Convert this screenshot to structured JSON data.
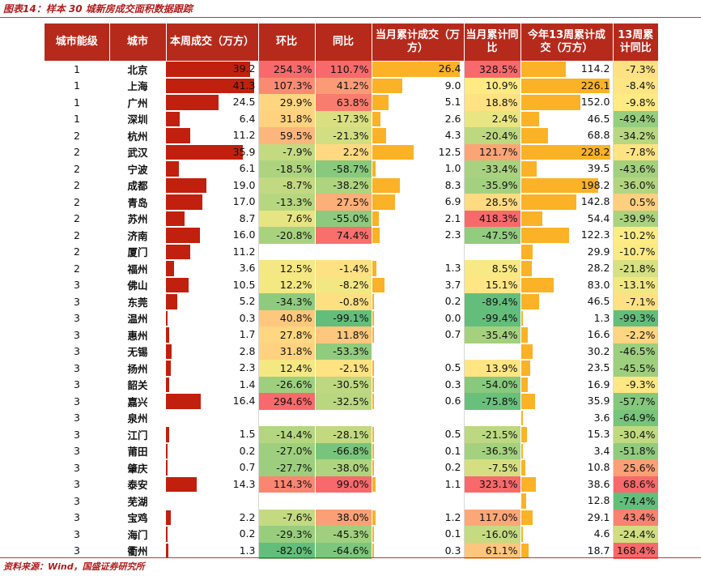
{
  "caption": "图表14：样本 30 城新房成交面积数据跟踪",
  "source": "资料来源：Wind，国盛证券研究所",
  "colors": {
    "header_bg": "#b62a1c",
    "weekly_bar": "#c1200e",
    "month_bar": "#fbb226",
    "text_red": "#b01c1c"
  },
  "headers": {
    "level": "城市能级",
    "city": "城市",
    "weekly": "本周成交（万方）",
    "mom": "环比",
    "yoy": "同比",
    "month_cum": "当月累计成交（万方）",
    "month_yoy": "当月累计同比",
    "y13": "今年13周累计成交（万方）",
    "y13_yoy": "13周累计同比"
  },
  "rows": [
    {
      "level": "1",
      "city": "北京",
      "weekly": "39.2",
      "mom": "254.3%",
      "yoy": "110.7%",
      "month_cum": "26.4",
      "month_yoy": "328.5%",
      "y13": "114.2",
      "y13_yoy": "-7.3%"
    },
    {
      "level": "1",
      "city": "上海",
      "weekly": "41.3",
      "mom": "107.3%",
      "yoy": "41.2%",
      "month_cum": "9.0",
      "month_yoy": "10.9%",
      "y13": "226.1",
      "y13_yoy": "-8.4%"
    },
    {
      "level": "1",
      "city": "广州",
      "weekly": "24.5",
      "mom": "29.9%",
      "yoy": "63.8%",
      "month_cum": "5.1",
      "month_yoy": "18.8%",
      "y13": "152.0",
      "y13_yoy": "-9.8%"
    },
    {
      "level": "1",
      "city": "深圳",
      "weekly": "6.4",
      "mom": "31.8%",
      "yoy": "-17.3%",
      "month_cum": "2.6",
      "month_yoy": "2.4%",
      "y13": "46.5",
      "y13_yoy": "-49.4%"
    },
    {
      "level": "2",
      "city": "杭州",
      "weekly": "11.2",
      "mom": "59.5%",
      "yoy": "-21.3%",
      "month_cum": "4.3",
      "month_yoy": "-20.4%",
      "y13": "68.8",
      "y13_yoy": "-34.2%"
    },
    {
      "level": "2",
      "city": "武汉",
      "weekly": "35.9",
      "mom": "-7.9%",
      "yoy": "2.2%",
      "month_cum": "12.5",
      "month_yoy": "121.7%",
      "y13": "228.2",
      "y13_yoy": "-7.8%"
    },
    {
      "level": "2",
      "city": "宁波",
      "weekly": "6.1",
      "mom": "-18.5%",
      "yoy": "-58.7%",
      "month_cum": "1.0",
      "month_yoy": "-33.4%",
      "y13": "39.5",
      "y13_yoy": "-43.6%"
    },
    {
      "level": "2",
      "city": "成都",
      "weekly": "19.0",
      "mom": "-8.7%",
      "yoy": "-38.2%",
      "month_cum": "8.3",
      "month_yoy": "-35.9%",
      "y13": "198.2",
      "y13_yoy": "-36.0%"
    },
    {
      "level": "2",
      "city": "青岛",
      "weekly": "17.0",
      "mom": "-13.3%",
      "yoy": "27.5%",
      "month_cum": "6.9",
      "month_yoy": "28.5%",
      "y13": "142.8",
      "y13_yoy": "0.5%"
    },
    {
      "level": "2",
      "city": "苏州",
      "weekly": "8.7",
      "mom": "7.6%",
      "yoy": "-55.0%",
      "month_cum": "2.1",
      "month_yoy": "418.3%",
      "y13": "54.4",
      "y13_yoy": "-39.9%"
    },
    {
      "level": "2",
      "city": "济南",
      "weekly": "16.0",
      "mom": "-20.8%",
      "yoy": "74.4%",
      "month_cum": "2.3",
      "month_yoy": "-47.5%",
      "y13": "122.3",
      "y13_yoy": "-10.2%"
    },
    {
      "level": "2",
      "city": "厦门",
      "weekly": "11.2",
      "mom": "",
      "yoy": "",
      "month_cum": "",
      "month_yoy": "",
      "y13": "29.9",
      "y13_yoy": "-10.7%"
    },
    {
      "level": "2",
      "city": "福州",
      "weekly": "3.6",
      "mom": "12.5%",
      "yoy": "-1.4%",
      "month_cum": "1.3",
      "month_yoy": "8.5%",
      "y13": "28.2",
      "y13_yoy": "-21.8%"
    },
    {
      "level": "3",
      "city": "佛山",
      "weekly": "10.5",
      "mom": "12.2%",
      "yoy": "-8.2%",
      "month_cum": "3.7",
      "month_yoy": "15.1%",
      "y13": "83.0",
      "y13_yoy": "-13.1%"
    },
    {
      "level": "3",
      "city": "东莞",
      "weekly": "5.2",
      "mom": "-34.3%",
      "yoy": "-0.8%",
      "month_cum": "0.2",
      "month_yoy": "-89.4%",
      "y13": "46.5",
      "y13_yoy": "-7.1%"
    },
    {
      "level": "3",
      "city": "温州",
      "weekly": "0.3",
      "mom": "40.8%",
      "yoy": "-99.1%",
      "month_cum": "0.0",
      "month_yoy": "-99.4%",
      "y13": "1.3",
      "y13_yoy": "-99.3%"
    },
    {
      "level": "3",
      "city": "惠州",
      "weekly": "1.7",
      "mom": "27.8%",
      "yoy": "11.8%",
      "month_cum": "0.7",
      "month_yoy": "-35.4%",
      "y13": "16.6",
      "y13_yoy": "-2.2%"
    },
    {
      "level": "3",
      "city": "无锡",
      "weekly": "2.8",
      "mom": "31.8%",
      "yoy": "-53.3%",
      "month_cum": "",
      "month_yoy": "",
      "y13": "30.2",
      "y13_yoy": "-46.5%"
    },
    {
      "level": "3",
      "city": "扬州",
      "weekly": "2.3",
      "mom": "12.4%",
      "yoy": "-2.1%",
      "month_cum": "0.5",
      "month_yoy": "13.9%",
      "y13": "23.5",
      "y13_yoy": "-45.5%"
    },
    {
      "level": "3",
      "city": "韶关",
      "weekly": "1.4",
      "mom": "-26.6%",
      "yoy": "-30.5%",
      "month_cum": "0.3",
      "month_yoy": "-54.0%",
      "y13": "16.9",
      "y13_yoy": "-9.3%"
    },
    {
      "level": "3",
      "city": "嘉兴",
      "weekly": "16.4",
      "mom": "294.6%",
      "yoy": "-32.5%",
      "month_cum": "0.6",
      "month_yoy": "-75.8%",
      "y13": "35.9",
      "y13_yoy": "-57.7%"
    },
    {
      "level": "3",
      "city": "泉州",
      "weekly": "",
      "mom": "",
      "yoy": "",
      "month_cum": "",
      "month_yoy": "",
      "y13": "3.6",
      "y13_yoy": "-64.9%"
    },
    {
      "level": "3",
      "city": "江门",
      "weekly": "1.5",
      "mom": "-14.4%",
      "yoy": "-28.1%",
      "month_cum": "0.5",
      "month_yoy": "-21.5%",
      "y13": "15.3",
      "y13_yoy": "-30.4%"
    },
    {
      "level": "3",
      "city": "莆田",
      "weekly": "0.2",
      "mom": "-27.0%",
      "yoy": "-66.8%",
      "month_cum": "0.1",
      "month_yoy": "-36.3%",
      "y13": "3.4",
      "y13_yoy": "-51.8%"
    },
    {
      "level": "3",
      "city": "肇庆",
      "weekly": "0.7",
      "mom": "-27.7%",
      "yoy": "-38.0%",
      "month_cum": "0.2",
      "month_yoy": "-7.5%",
      "y13": "10.8",
      "y13_yoy": "25.6%"
    },
    {
      "level": "3",
      "city": "泰安",
      "weekly": "14.3",
      "mom": "114.3%",
      "yoy": "99.0%",
      "month_cum": "1.1",
      "month_yoy": "323.1%",
      "y13": "38.6",
      "y13_yoy": "68.6%"
    },
    {
      "level": "3",
      "city": "芜湖",
      "weekly": "",
      "mom": "",
      "yoy": "",
      "month_cum": "",
      "month_yoy": "",
      "y13": "12.8",
      "y13_yoy": "-74.4%"
    },
    {
      "level": "3",
      "city": "宝鸡",
      "weekly": "2.2",
      "mom": "-7.6%",
      "yoy": "38.0%",
      "month_cum": "1.2",
      "month_yoy": "117.0%",
      "y13": "29.1",
      "y13_yoy": "43.4%"
    },
    {
      "level": "3",
      "city": "海门",
      "weekly": "0.2",
      "mom": "-29.3%",
      "yoy": "-45.3%",
      "month_cum": "0.1",
      "month_yoy": "-16.0%",
      "y13": "4.6",
      "y13_yoy": "-24.4%"
    },
    {
      "level": "3",
      "city": "衢州",
      "weekly": "1.3",
      "mom": "-82.0%",
      "yoy": "-64.6%",
      "month_cum": "0.3",
      "month_yoy": "61.1%",
      "y13": "18.7",
      "y13_yoy": "168.4%"
    }
  ]
}
